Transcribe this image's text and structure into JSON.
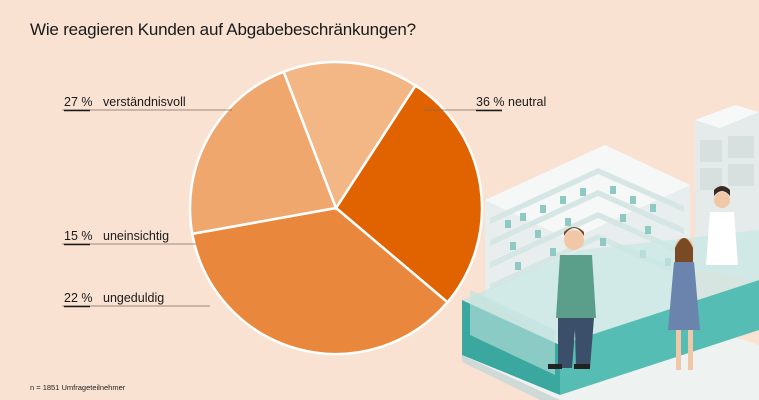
{
  "title": "Wie reagieren Kunden auf Abgabebeschränkungen?",
  "note": "n = 1851 Umfrageteilnehmer",
  "colors": {
    "background": "#f9e2d2",
    "verstaendnisvoll": "#e06300",
    "neutral": "#e9883c",
    "ungeduldig": "#f0a76e",
    "uneinsichtig": "#f3b685"
  },
  "chart_data": {
    "type": "pie",
    "title": "Wie reagieren Kunden auf Abgabebeschränkungen?",
    "unit": "%",
    "slices": [
      {
        "label": "verständnisvoll",
        "pct_label": "27 %",
        "value": 27,
        "color": "#e06300"
      },
      {
        "label": "neutral",
        "pct_label": "36 %",
        "value": 36,
        "color": "#e9883c"
      },
      {
        "label": "ungeduldig",
        "pct_label": "22 %",
        "value": 22,
        "color": "#f0a76e"
      },
      {
        "label": "uneinsichtig",
        "pct_label": "15 %",
        "value": 15,
        "color": "#f3b685"
      }
    ]
  }
}
